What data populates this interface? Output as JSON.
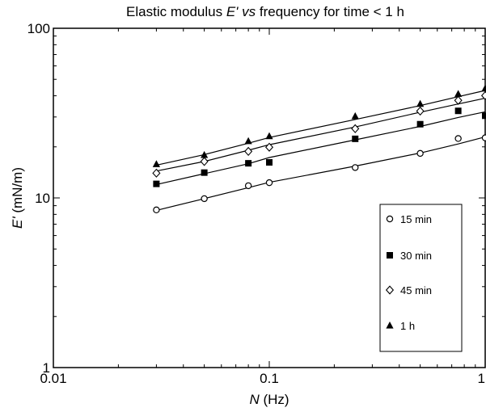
{
  "chart_data": {
    "type": "scatter",
    "title": {
      "prefix": "Elastic modulus ",
      "symbol": "E'",
      "mid": " vs ",
      "suffix": " frequency for time < 1 h"
    },
    "xlabel": {
      "symbol": "N",
      "unit": " (Hz)"
    },
    "ylabel": {
      "symbol": "E'",
      "unit": " (mN/m)"
    },
    "x_scale": "log",
    "y_scale": "log",
    "xlim": [
      0.01,
      1
    ],
    "ylim": [
      1,
      100
    ],
    "x_ticks": [
      {
        "value": 0.01,
        "label": "0.01"
      },
      {
        "value": 0.1,
        "label": "0.1"
      },
      {
        "value": 1,
        "label": "1"
      }
    ],
    "y_ticks": [
      {
        "value": 1,
        "label": "1"
      },
      {
        "value": 10,
        "label": "10"
      },
      {
        "value": 100,
        "label": "100"
      }
    ],
    "grid": false,
    "legend_position": "lower-right",
    "x": [
      0.03,
      0.05,
      0.08,
      0.1,
      0.25,
      0.5,
      0.75,
      1.0
    ],
    "series": [
      {
        "name": "15 min",
        "marker": "open-circle",
        "values": [
          8.5,
          9.9,
          11.8,
          12.3,
          15.1,
          18.3,
          22.4,
          22.6
        ],
        "fit": [
          8.45,
          9.9,
          11.5,
          12.35,
          15.4,
          18.4,
          20.8,
          22.9
        ]
      },
      {
        "name": "30 min",
        "marker": "filled-square",
        "values": [
          12.1,
          14.1,
          16.0,
          16.2,
          22.3,
          27.2,
          32.6,
          30.5
        ],
        "fit": [
          12.0,
          13.9,
          15.9,
          17.3,
          22.0,
          26.4,
          29.8,
          32.2
        ]
      },
      {
        "name": "45 min",
        "marker": "open-diamond",
        "values": [
          14.0,
          16.4,
          18.8,
          19.9,
          25.6,
          32.5,
          37.6,
          40.1
        ],
        "fit": [
          14.4,
          16.4,
          19.1,
          20.6,
          26.2,
          32.0,
          35.8,
          38.7
        ]
      },
      {
        "name": "1 h",
        "marker": "filled-triangle",
        "values": [
          15.8,
          17.9,
          21.6,
          23.1,
          30.3,
          35.8,
          41.0,
          44.1
        ],
        "fit": [
          15.6,
          18.0,
          21.0,
          22.7,
          29.0,
          35.0,
          39.5,
          43.0
        ]
      }
    ],
    "colors": {
      "ink": "#000000",
      "background": "#ffffff"
    }
  }
}
